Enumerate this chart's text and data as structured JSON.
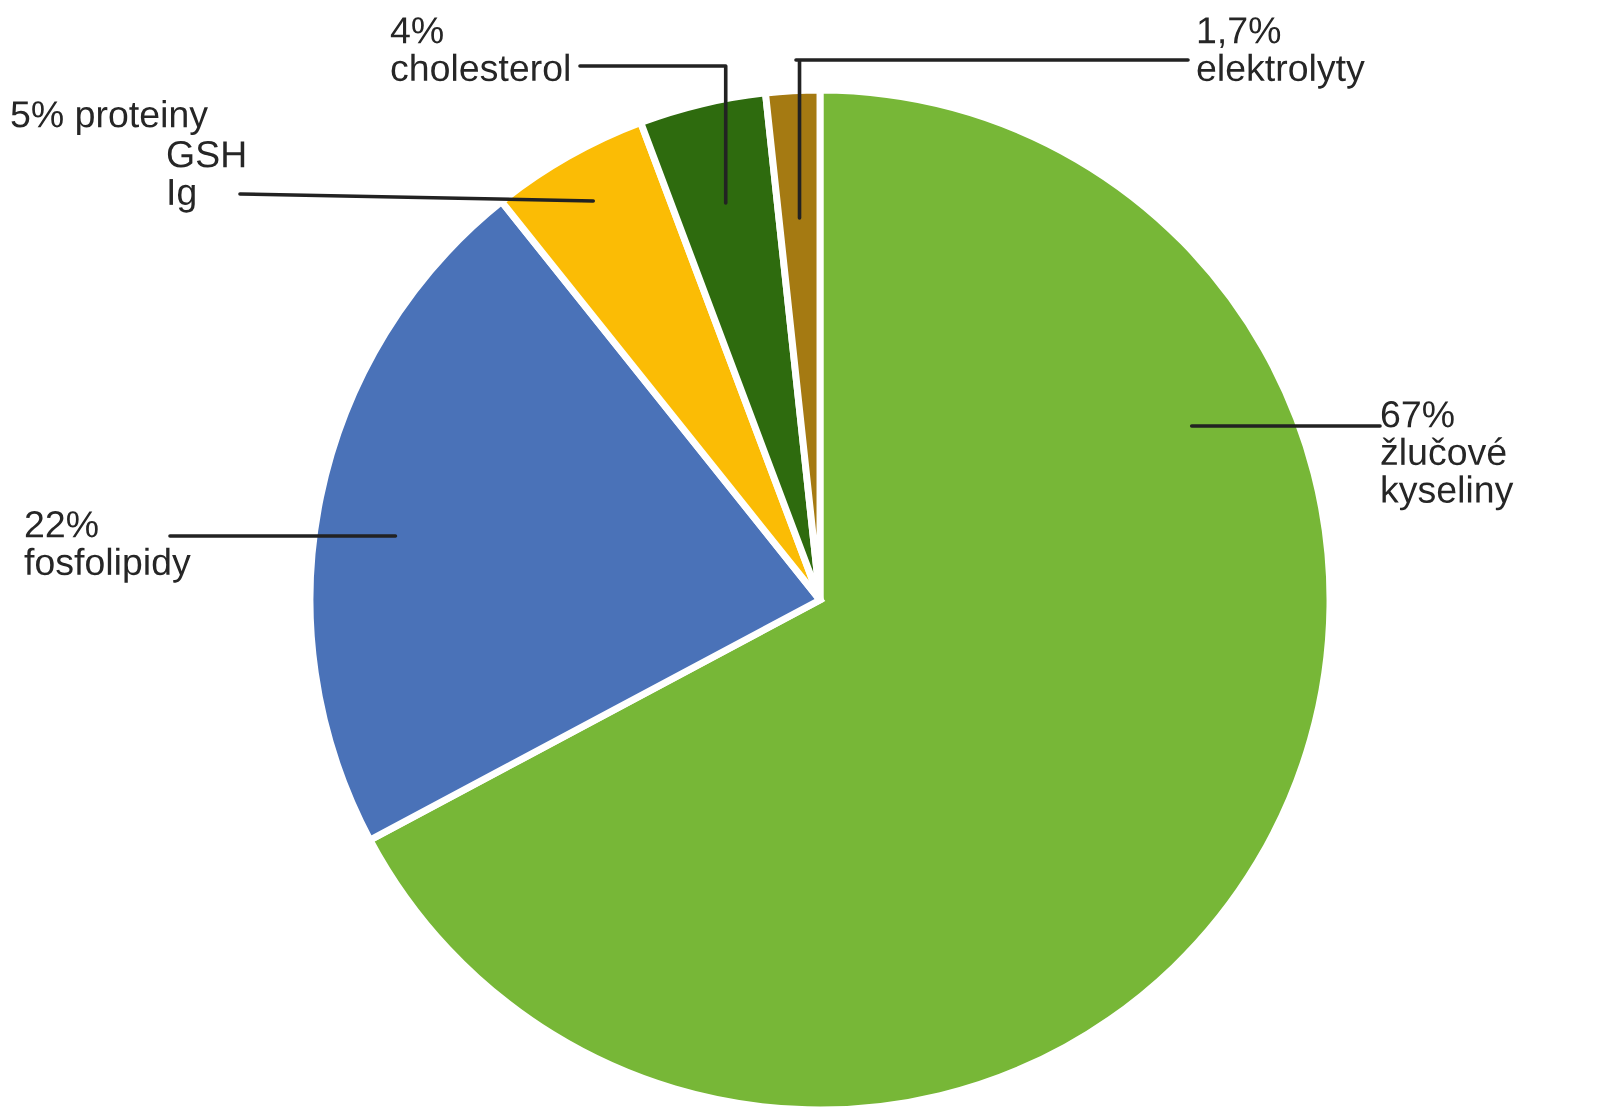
{
  "chart_data": {
    "type": "pie",
    "categories": [
      "žlučové\nkyseliny",
      "fosfolipidy",
      "proteiny\nGSH\nIg",
      "cholesterol",
      "elektrolyty"
    ],
    "values": [
      67,
      22,
      5,
      4,
      1.7
    ],
    "value_labels": [
      "67%",
      "22%",
      "5%",
      "4%",
      "1,7%"
    ],
    "colors": [
      "#77b737",
      "#4a72b8",
      "#fbbc05",
      "#2e6b0e",
      "#a57a12"
    ]
  }
}
